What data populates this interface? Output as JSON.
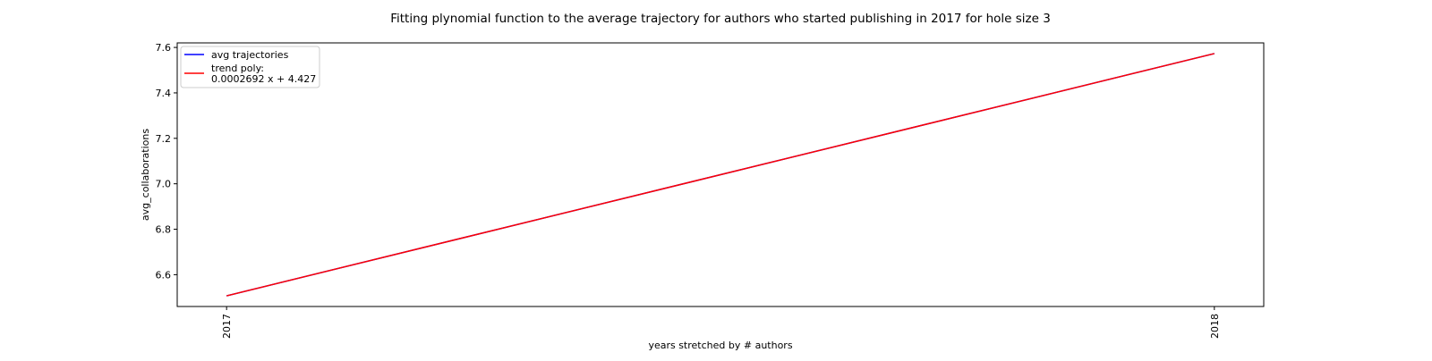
{
  "chart_data": {
    "type": "line",
    "title": "Fitting plynomial function to the average trajectory for authors who started publishing in 2017 for hole size 3",
    "xlabel": "years stretched by # authors",
    "ylabel": "avg_collaborations",
    "x_ticks": [
      "2017",
      "2018"
    ],
    "y_ticks": [
      "6.6",
      "6.8",
      "7.0",
      "7.2",
      "7.4",
      "7.6"
    ],
    "x": [
      2017,
      2018
    ],
    "xlim": [
      2016.95,
      2018.05
    ],
    "ylim": [
      6.46,
      7.62
    ],
    "grid": false,
    "legend_position": "upper-left",
    "series": [
      {
        "name": "avg trajectories",
        "color": "#0000ff",
        "values": [
          6.507,
          7.573
        ]
      },
      {
        "name": "trend poly:",
        "name_line2": "0.0002692 x + 4.427",
        "color": "#ff0000",
        "values": [
          6.507,
          7.573
        ]
      }
    ]
  }
}
